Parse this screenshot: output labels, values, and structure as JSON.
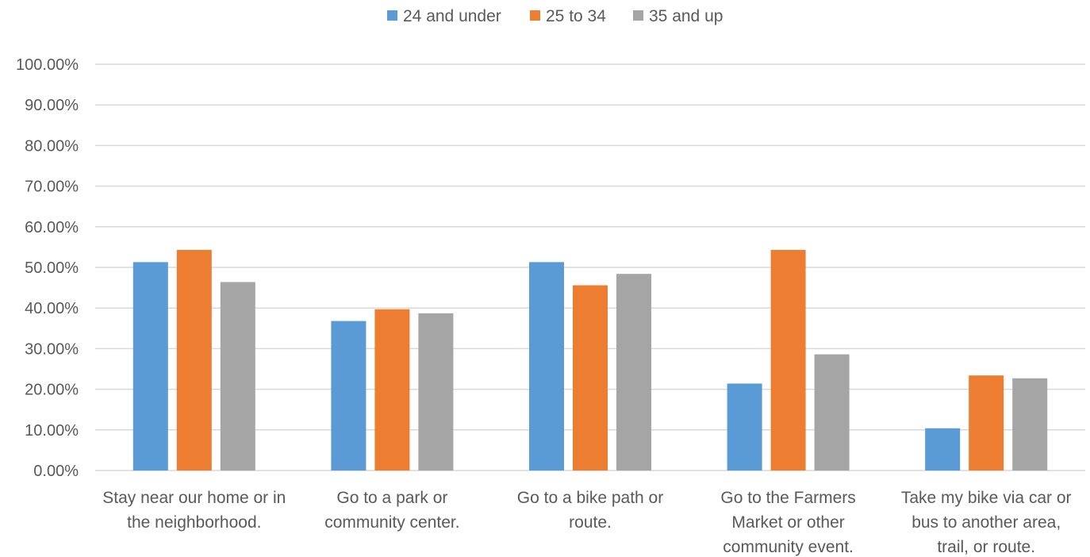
{
  "chart_data": {
    "type": "bar",
    "categories": [
      [
        "Stay near our home or in",
        "the neighborhood."
      ],
      [
        "Go to a park or",
        "community center."
      ],
      [
        "Go to a bike path or",
        "route."
      ],
      [
        "Go to the Farmers",
        "Market or other",
        "community event."
      ],
      [
        "Take my bike via car or",
        "bus to another area,",
        "trail, or route."
      ]
    ],
    "series": [
      {
        "name": "24 and under",
        "color": "#5b9bd5",
        "values": [
          51.3,
          36.8,
          51.3,
          21.4,
          10.4
        ]
      },
      {
        "name": "25 to 34",
        "color": "#ed7d31",
        "values": [
          54.3,
          39.7,
          45.6,
          54.3,
          23.4
        ]
      },
      {
        "name": "35 and up",
        "color": "#a5a5a5",
        "values": [
          46.4,
          38.7,
          48.4,
          28.6,
          22.7
        ]
      }
    ],
    "yticks": [
      "0.00%",
      "10.00%",
      "20.00%",
      "30.00%",
      "40.00%",
      "50.00%",
      "60.00%",
      "70.00%",
      "80.00%",
      "90.00%",
      "100.00%"
    ],
    "ylim": [
      0,
      100
    ],
    "grid": true,
    "legend_position": "top-center",
    "gridline_color": "#d9d9d9"
  }
}
